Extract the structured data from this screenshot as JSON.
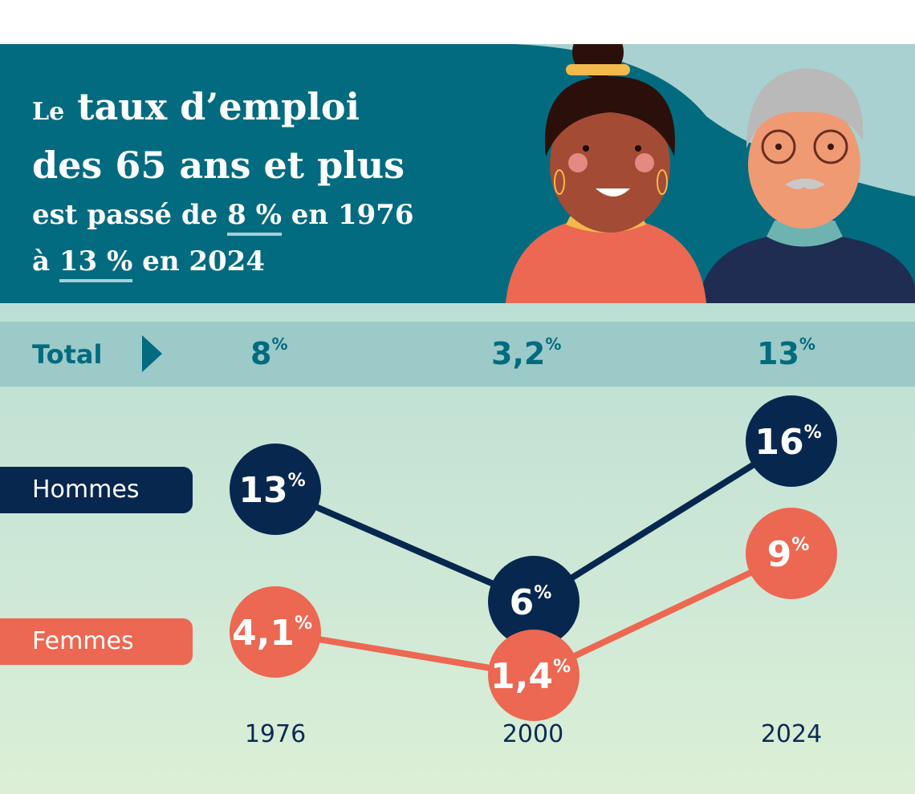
{
  "headline": {
    "line1_small": "Le",
    "line1": "taux d’emploi",
    "line2": "des 65 ans et plus",
    "line3_pre": "est passé de ",
    "line3_val": "8 %",
    "line3_post": " en 1976",
    "line4_pre": "à ",
    "line4_val": "13 %",
    "line4_post": " en 2024"
  },
  "colors": {
    "header": "#036b80",
    "hommes": "#08274f",
    "femmes": "#ec6852",
    "total_band": "#9ccac8",
    "total_text": "#036b80"
  },
  "chart_data": {
    "type": "line",
    "categories": [
      "1976",
      "2000",
      "2024"
    ],
    "total": {
      "label": "Total",
      "values": [
        8,
        3.2,
        13
      ],
      "display": [
        "8",
        "3,2",
        "13"
      ]
    },
    "series": [
      {
        "name": "Hommes",
        "values": [
          13,
          6,
          16
        ],
        "display": [
          "13",
          "6",
          "16"
        ]
      },
      {
        "name": "Femmes",
        "values": [
          4.1,
          1.4,
          9
        ],
        "display": [
          "4,1",
          "1,4",
          "9"
        ]
      }
    ],
    "unit": "%"
  }
}
